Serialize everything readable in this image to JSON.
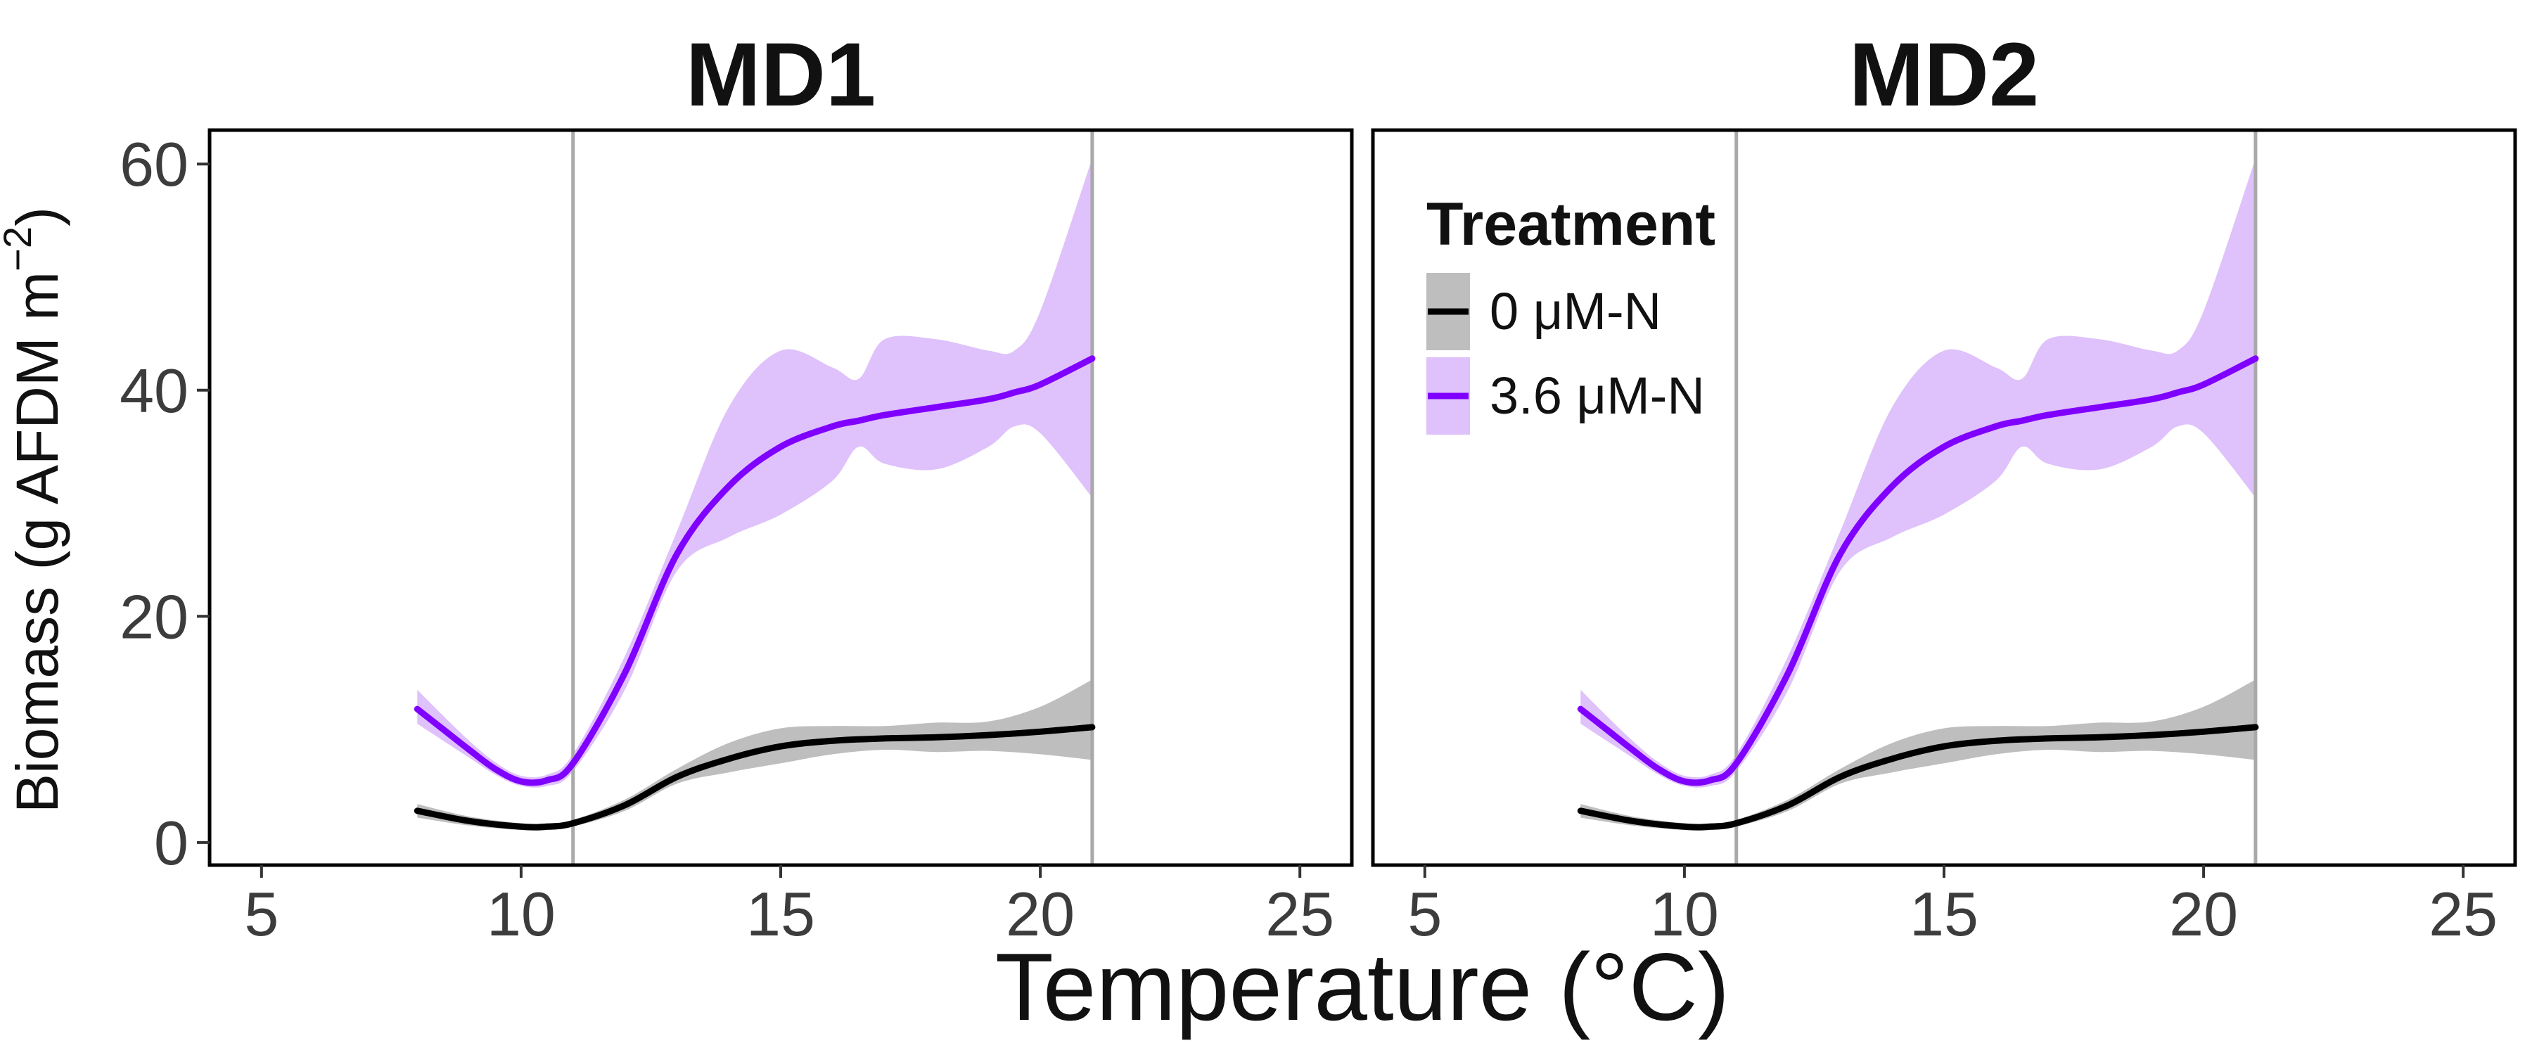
{
  "chart_data": {
    "type": "line",
    "panels": [
      "MD1",
      "MD2"
    ],
    "xlabel": "Temperature (°C)",
    "ylabel": {
      "main": "Biomass (g AFDM m",
      "sup": "−2",
      "tail": ")"
    },
    "xlim": [
      4,
      26
    ],
    "ylim": [
      -2,
      63
    ],
    "xticks": [
      5,
      10,
      15,
      20,
      25
    ],
    "yticks": [
      0,
      20,
      40,
      60
    ],
    "vlines": [
      11,
      21
    ],
    "grid": false,
    "legend": {
      "title": "Treatment",
      "placement": "top-left of MD2 panel"
    },
    "series": [
      {
        "name": "0 μM-N",
        "color": "#000000",
        "band_color": "#bebebe",
        "x": [
          8,
          9,
          10,
          10.5,
          11,
          12,
          13,
          14,
          15,
          16,
          17,
          18,
          19,
          20,
          21
        ],
        "y": [
          2.8,
          1.9,
          1.4,
          1.4,
          1.7,
          3.3,
          5.8,
          7.4,
          8.5,
          9.0,
          9.2,
          9.3,
          9.5,
          9.8,
          10.2
        ],
        "lower": [
          2.2,
          1.5,
          1.1,
          1.1,
          1.4,
          2.8,
          5.2,
          6.2,
          7.0,
          7.8,
          8.2,
          8.0,
          8.1,
          7.8,
          7.3
        ],
        "upper": [
          3.4,
          2.3,
          1.7,
          1.7,
          2.0,
          3.8,
          6.5,
          8.8,
          10.1,
          10.3,
          10.3,
          10.6,
          10.7,
          12.0,
          14.4
        ]
      },
      {
        "name": "3.6 μM-N",
        "color": "#7f00ff",
        "band_color": "#dfc1fb",
        "x": [
          8,
          8.5,
          9,
          9.5,
          10,
          10.5,
          11,
          12,
          13,
          14,
          15,
          16,
          16.5,
          17,
          18,
          19,
          19.5,
          20,
          21
        ],
        "y": [
          11.8,
          10.0,
          8.2,
          6.5,
          5.4,
          5.5,
          7.0,
          15.0,
          25.5,
          31.5,
          35.0,
          36.8,
          37.3,
          37.8,
          38.5,
          39.2,
          39.8,
          40.5,
          42.8
        ],
        "lower": [
          10.5,
          9.0,
          7.5,
          6.0,
          5.0,
          5.0,
          6.3,
          13.5,
          24.0,
          27.0,
          29.0,
          32.0,
          35.0,
          33.5,
          33.0,
          35.0,
          36.8,
          36.2,
          30.5
        ],
        "upper": [
          13.5,
          11.2,
          9.0,
          7.1,
          5.9,
          6.0,
          7.8,
          16.5,
          27.5,
          38.5,
          43.5,
          42.0,
          41.0,
          44.5,
          44.5,
          43.5,
          43.5,
          47.0,
          60.5
        ]
      }
    ]
  }
}
